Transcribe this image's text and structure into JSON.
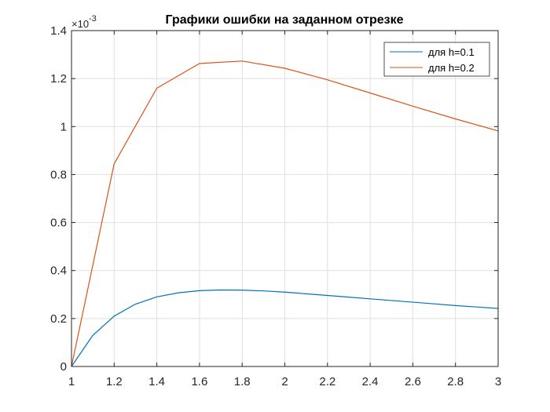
{
  "chart_data": {
    "type": "line",
    "title": "Графики ошибки на заданном отрезке",
    "xlabel": "",
    "ylabel": "",
    "y_exponent_label": "×10",
    "y_exponent_power": "-3",
    "xlim": [
      1,
      3
    ],
    "ylim": [
      0,
      1.4
    ],
    "x_ticks": [
      "1",
      "1.2",
      "1.4",
      "1.6",
      "1.8",
      "2",
      "2.2",
      "2.4",
      "2.6",
      "2.8",
      "3"
    ],
    "y_ticks": [
      "0",
      "0.2",
      "0.4",
      "0.6",
      "0.8",
      "1",
      "1.2",
      "1.4"
    ],
    "grid": true,
    "legend_position": "top-right",
    "series": [
      {
        "name": "для h=0.1",
        "color": "#0072BD",
        "x": [
          1,
          1.1,
          1.2,
          1.3,
          1.4,
          1.5,
          1.6,
          1.7,
          1.8,
          1.9,
          2,
          2.1,
          2.2,
          2.3,
          2.4,
          2.5,
          2.6,
          2.7,
          2.8,
          2.9,
          3
        ],
        "y": [
          0,
          0.13,
          0.21,
          0.26,
          0.29,
          0.307,
          0.316,
          0.319,
          0.318,
          0.315,
          0.31,
          0.303,
          0.296,
          0.289,
          0.282,
          0.275,
          0.268,
          0.261,
          0.254,
          0.248,
          0.242
        ]
      },
      {
        "name": "для h=0.2",
        "color": "#D95319",
        "x": [
          1,
          1.2,
          1.4,
          1.6,
          1.8,
          2,
          2.2,
          2.4,
          2.6,
          2.8,
          3
        ],
        "y": [
          0,
          0.845,
          1.16,
          1.263,
          1.273,
          1.243,
          1.195,
          1.14,
          1.085,
          1.032,
          0.982
        ]
      }
    ]
  }
}
